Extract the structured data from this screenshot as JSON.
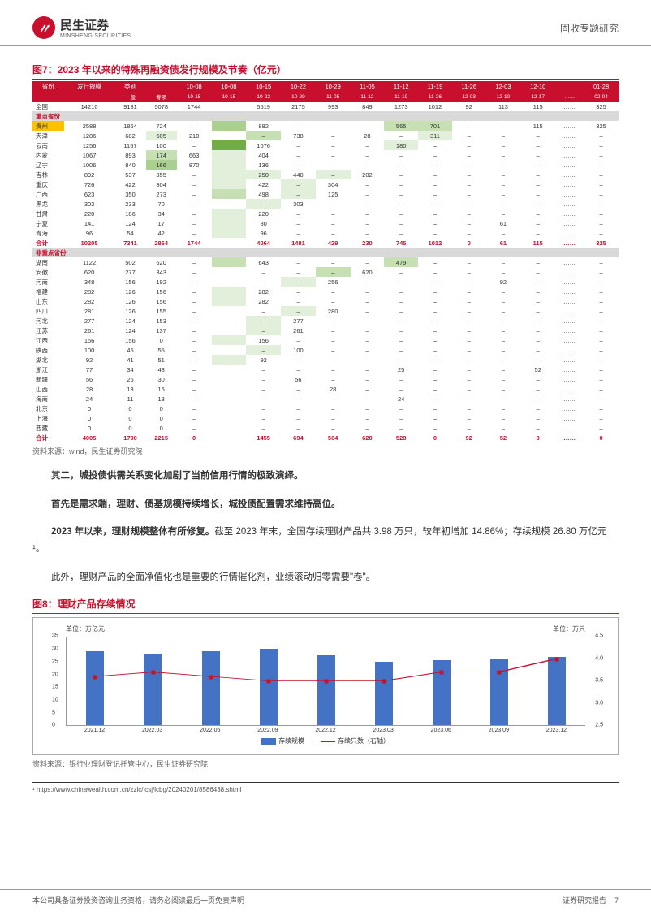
{
  "header": {
    "logo_cn": "民生证券",
    "logo_en": "MINSHENG SECURITIES",
    "right": "固收专题研究"
  },
  "fig7": {
    "title": "图7：2023 年以来的特殊再融资债发行规模及节奏（亿元）",
    "source": "资料来源：wind，民生证券研究院",
    "head1": [
      "省份",
      "发行规模",
      "类别",
      "",
      "10-08",
      "10-08",
      "10-15",
      "10-22",
      "10-29",
      "11-05",
      "11-12",
      "11-19",
      "11-26",
      "12-03",
      "12-10",
      "",
      "01-28"
    ],
    "head2": [
      "",
      "",
      "一般",
      "专项",
      "10-15",
      "10-15",
      "10-22",
      "10-29",
      "11-05",
      "11-12",
      "11-19",
      "11-26",
      "12-03",
      "12-10",
      "12-17",
      "……",
      "02-04"
    ],
    "national": [
      "全国",
      "14210",
      "9131",
      "5078",
      "1744",
      "",
      "5519",
      "2175",
      "993",
      "849",
      "1273",
      "1012",
      "92",
      "113",
      "115",
      "……",
      "325"
    ],
    "sec1": "重点省份",
    "rows1": [
      [
        "贵州",
        "2588",
        "1864",
        "724",
        "–",
        "",
        "882",
        "–",
        "–",
        "–",
        "565",
        "701",
        "–",
        "–",
        "115",
        "……",
        "325",
        "hlo",
        "",
        "",
        "",
        "",
        "hl3",
        "",
        "",
        "",
        "",
        "hl2",
        "hl2",
        "",
        "",
        "",
        ""
      ],
      [
        "天津",
        "1286",
        "682",
        "605",
        "210",
        "",
        "–",
        "738",
        "–",
        "28",
        "–",
        "311",
        "–",
        "–",
        "–",
        "……",
        "–",
        "",
        "",
        "",
        "hl1",
        "",
        "",
        "hl2",
        "",
        "",
        "",
        "",
        "hl1",
        "",
        "",
        "",
        ""
      ],
      [
        "云南",
        "1256",
        "1157",
        "100",
        "–",
        "",
        "1076",
        "–",
        "–",
        "–",
        "180",
        "–",
        "–",
        "–",
        "–",
        "……",
        "–",
        "",
        "",
        "",
        "",
        "",
        "hl4",
        "",
        "",
        "",
        "",
        "hl1",
        "",
        "",
        "",
        "",
        ""
      ],
      [
        "内蒙",
        "1067",
        "893",
        "174",
        "663",
        "",
        "404",
        "–",
        "–",
        "–",
        "–",
        "–",
        "–",
        "–",
        "–",
        "……",
        "–",
        "",
        "",
        "",
        "hl2",
        "",
        "hl1",
        "",
        "",
        "",
        "",
        "",
        "",
        "",
        "",
        "",
        ""
      ],
      [
        "辽宁",
        "1006",
        "840",
        "166",
        "870",
        "",
        "136",
        "–",
        "–",
        "–",
        "–",
        "–",
        "–",
        "–",
        "–",
        "……",
        "–",
        "",
        "",
        "",
        "hl3",
        "",
        "hl1",
        "",
        "",
        "",
        "",
        "",
        "",
        "",
        "",
        "",
        ""
      ],
      [
        "吉林",
        "892",
        "537",
        "355",
        "–",
        "",
        "250",
        "440",
        "–",
        "202",
        "–",
        "–",
        "–",
        "–",
        "–",
        "……",
        "–",
        "",
        "",
        "",
        "",
        "",
        "hl1",
        "hl1",
        "",
        "hl1",
        "",
        "",
        "",
        "",
        "",
        "",
        ""
      ],
      [
        "重庆",
        "726",
        "422",
        "304",
        "–",
        "",
        "422",
        "–",
        "304",
        "–",
        "–",
        "–",
        "–",
        "–",
        "–",
        "……",
        "–",
        "",
        "",
        "",
        "",
        "",
        "hl1",
        "",
        "hl1",
        "",
        "",
        "",
        "",
        "",
        "",
        "",
        ""
      ],
      [
        "广西",
        "623",
        "350",
        "273",
        "–",
        "",
        "498",
        "–",
        "125",
        "–",
        "–",
        "–",
        "–",
        "–",
        "–",
        "……",
        "–",
        "",
        "",
        "",
        "",
        "",
        "hl2",
        "",
        "hl1",
        "",
        "",
        "",
        "",
        "",
        "",
        "",
        ""
      ],
      [
        "黑龙",
        "303",
        "233",
        "70",
        "–",
        "",
        "–",
        "303",
        "–",
        "–",
        "–",
        "–",
        "–",
        "–",
        "–",
        "……",
        "–",
        "",
        "",
        "",
        "",
        "",
        "",
        "hl1",
        "",
        "",
        "",
        "",
        "",
        "",
        "",
        "",
        ""
      ],
      [
        "甘肃",
        "220",
        "186",
        "34",
        "–",
        "",
        "220",
        "–",
        "–",
        "–",
        "–",
        "–",
        "–",
        "–",
        "–",
        "……",
        "–",
        "",
        "",
        "",
        "",
        "",
        "hl1",
        "",
        "",
        "",
        "",
        "",
        "",
        "",
        "",
        "",
        ""
      ],
      [
        "宁夏",
        "141",
        "124",
        "17",
        "–",
        "",
        "80",
        "–",
        "–",
        "–",
        "–",
        "–",
        "–",
        "61",
        "–",
        "……",
        "–",
        "",
        "",
        "",
        "",
        "",
        "hl1",
        "",
        "",
        "",
        "",
        "",
        "",
        "",
        "",
        "",
        ""
      ],
      [
        "青海",
        "96",
        "54",
        "42",
        "–",
        "",
        "96",
        "–",
        "–",
        "–",
        "–",
        "–",
        "–",
        "–",
        "–",
        "……",
        "–",
        "",
        "",
        "",
        "",
        "",
        "hl1",
        "",
        "",
        "",
        "",
        "",
        "",
        "",
        "",
        "",
        ""
      ]
    ],
    "total1": [
      "合计",
      "10205",
      "7341",
      "2864",
      "1744",
      "",
      "4064",
      "1481",
      "429",
      "230",
      "745",
      "1012",
      "0",
      "61",
      "115",
      "……",
      "325"
    ],
    "sec2": "非重点省份",
    "rows2": [
      [
        "湖南",
        "1122",
        "502",
        "620",
        "–",
        "",
        "643",
        "–",
        "–",
        "–",
        "479",
        "–",
        "–",
        "–",
        "–",
        "……",
        "–",
        "",
        "",
        "",
        "",
        "",
        "hl2",
        "",
        "",
        "",
        "",
        "hl2",
        "",
        "",
        "",
        "",
        ""
      ],
      [
        "安徽",
        "620",
        "277",
        "343",
        "–",
        "",
        "–",
        "–",
        "–",
        "620",
        "–",
        "–",
        "–",
        "–",
        "–",
        "……",
        "–",
        "",
        "",
        "",
        "",
        "",
        "",
        "",
        "",
        "hl2",
        "",
        "",
        "",
        "",
        "",
        "",
        ""
      ],
      [
        "河南",
        "348",
        "156",
        "192",
        "–",
        "",
        "–",
        "–",
        "256",
        "–",
        "–",
        "–",
        "–",
        "92",
        "–",
        "……",
        "–",
        "",
        "",
        "",
        "",
        "",
        "",
        "",
        "hl1",
        "",
        "",
        "",
        "",
        "",
        "",
        "",
        ""
      ],
      [
        "福建",
        "282",
        "126",
        "156",
        "–",
        "",
        "282",
        "–",
        "–",
        "–",
        "–",
        "–",
        "–",
        "–",
        "–",
        "……",
        "–",
        "",
        "",
        "",
        "",
        "",
        "hl1",
        "",
        "",
        "",
        "",
        "",
        "",
        "",
        "",
        "",
        ""
      ],
      [
        "山东",
        "282",
        "126",
        "156",
        "–",
        "",
        "282",
        "–",
        "–",
        "–",
        "–",
        "–",
        "–",
        "–",
        "–",
        "……",
        "–",
        "",
        "",
        "",
        "",
        "",
        "hl1",
        "",
        "",
        "",
        "",
        "",
        "",
        "",
        "",
        "",
        ""
      ],
      [
        "四川",
        "281",
        "126",
        "155",
        "–",
        "",
        "–",
        "–",
        "280",
        "–",
        "–",
        "–",
        "–",
        "–",
        "–",
        "……",
        "–",
        "",
        "",
        "",
        "",
        "",
        "",
        "",
        "hl1",
        "",
        "",
        "",
        "",
        "",
        "",
        "",
        ""
      ],
      [
        "河北",
        "277",
        "124",
        "153",
        "–",
        "",
        "–",
        "277",
        "–",
        "–",
        "–",
        "–",
        "–",
        "–",
        "–",
        "……",
        "–",
        "",
        "",
        "",
        "",
        "",
        "",
        "hl1",
        "",
        "",
        "",
        "",
        "",
        "",
        "",
        "",
        ""
      ],
      [
        "江苏",
        "261",
        "124",
        "137",
        "–",
        "",
        "–",
        "261",
        "–",
        "–",
        "–",
        "–",
        "–",
        "–",
        "–",
        "……",
        "–",
        "",
        "",
        "",
        "",
        "",
        "",
        "hl1",
        "",
        "",
        "",
        "",
        "",
        "",
        "",
        "",
        ""
      ],
      [
        "江西",
        "156",
        "156",
        "0",
        "–",
        "",
        "156",
        "–",
        "–",
        "–",
        "–",
        "–",
        "–",
        "–",
        "–",
        "……",
        "–",
        "",
        "",
        "",
        "",
        "",
        "hl1",
        "",
        "",
        "",
        "",
        "",
        "",
        "",
        "",
        "",
        ""
      ],
      [
        "陕西",
        "100",
        "45",
        "55",
        "–",
        "",
        "–",
        "100",
        "–",
        "–",
        "–",
        "–",
        "–",
        "–",
        "–",
        "……",
        "–",
        "",
        "",
        "",
        "",
        "",
        "",
        "hl1",
        "",
        "",
        "",
        "",
        "",
        "",
        "",
        "",
        ""
      ],
      [
        "湖北",
        "92",
        "41",
        "51",
        "–",
        "",
        "92",
        "–",
        "–",
        "–",
        "–",
        "–",
        "–",
        "–",
        "–",
        "……",
        "–",
        "",
        "",
        "",
        "",
        "",
        "hl1",
        "",
        "",
        "",
        "",
        "",
        "",
        "",
        "",
        "",
        ""
      ],
      [
        "浙江",
        "77",
        "34",
        "43",
        "–",
        "",
        "–",
        "–",
        "–",
        "–",
        "25",
        "–",
        "–",
        "–",
        "52",
        "……",
        "–",
        "",
        "",
        "",
        "",
        "",
        "",
        "",
        "",
        "",
        "",
        "",
        "",
        "",
        "",
        "",
        ""
      ],
      [
        "新疆",
        "56",
        "26",
        "30",
        "–",
        "",
        "–",
        "56",
        "–",
        "–",
        "–",
        "–",
        "–",
        "–",
        "–",
        "……",
        "–",
        "",
        "",
        "",
        "",
        "",
        "",
        "",
        "",
        "",
        "",
        "",
        "",
        "",
        "",
        "",
        ""
      ],
      [
        "山西",
        "28",
        "13",
        "16",
        "–",
        "",
        "–",
        "–",
        "28",
        "–",
        "–",
        "–",
        "–",
        "–",
        "–",
        "……",
        "–",
        "",
        "",
        "",
        "",
        "",
        "",
        "",
        "",
        "",
        "",
        "",
        "",
        "",
        "",
        "",
        ""
      ],
      [
        "海南",
        "24",
        "11",
        "13",
        "–",
        "",
        "–",
        "–",
        "–",
        "–",
        "24",
        "–",
        "–",
        "–",
        "–",
        "……",
        "–",
        "",
        "",
        "",
        "",
        "",
        "",
        "",
        "",
        "",
        "",
        "",
        "",
        "",
        "",
        "",
        ""
      ],
      [
        "北京",
        "0",
        "0",
        "0",
        "–",
        "",
        "–",
        "–",
        "–",
        "–",
        "–",
        "–",
        "–",
        "–",
        "–",
        "……",
        "–",
        "",
        "",
        "",
        "",
        "",
        "",
        "",
        "",
        "",
        "",
        "",
        "",
        "",
        "",
        "",
        ""
      ],
      [
        "上海",
        "0",
        "0",
        "0",
        "–",
        "",
        "–",
        "–",
        "–",
        "–",
        "–",
        "–",
        "–",
        "–",
        "–",
        "……",
        "–",
        "",
        "",
        "",
        "",
        "",
        "",
        "",
        "",
        "",
        "",
        "",
        "",
        "",
        "",
        "",
        ""
      ],
      [
        "西藏",
        "0",
        "0",
        "0",
        "–",
        "",
        "–",
        "–",
        "–",
        "–",
        "–",
        "–",
        "–",
        "–",
        "–",
        "……",
        "–",
        "",
        "",
        "",
        "",
        "",
        "",
        "",
        "",
        "",
        "",
        "",
        "",
        "",
        "",
        "",
        ""
      ]
    ],
    "total2": [
      "合计",
      "4005",
      "1790",
      "2215",
      "0",
      "",
      "1455",
      "694",
      "564",
      "620",
      "528",
      "0",
      "92",
      "52",
      "0",
      "……",
      "0"
    ]
  },
  "paras": [
    {
      "t": "其二，城投债供需关系变化加剧了当前信用行情的极致演绎。",
      "b": true
    },
    {
      "t": "首先是需求端，理财、债基规模持续增长，城投债配置需求维持高位。",
      "b": true
    },
    {
      "t": "2023 年以来，理财规模整体有所修复。截至 2023 年末，全国存续理财产品共 3.98 万只，较年初增加 14.86%；存续规模 26.80 万亿元¹。",
      "b": false,
      "boldPrefix": "2023 年以来，理财规模整体有所修复。"
    },
    {
      "t": "此外，理财产品的全面净值化也是重要的行情催化剂，业绩滚动归零需要\"卷\"。",
      "b": false
    }
  ],
  "fig8": {
    "title": "图8：理财产品存续情况",
    "source": "资料来源：银行业理财登记托管中心，民生证券研究院",
    "unit_l": "单位：万亿元",
    "unit_r": "单位：万只",
    "yl": [
      0,
      5,
      10,
      15,
      20,
      25,
      30,
      35
    ],
    "yr": [
      2.5,
      3.0,
      3.5,
      4.0,
      4.5
    ],
    "x": [
      "2021.12",
      "2022.03",
      "2022.06",
      "2022.09",
      "2022.12",
      "2023.03",
      "2023.06",
      "2023.09",
      "2023.12"
    ],
    "bars": [
      29,
      28,
      29,
      30,
      27.5,
      25,
      25.5,
      26,
      27
    ],
    "line": [
      3.6,
      3.7,
      3.6,
      3.5,
      3.5,
      3.5,
      3.7,
      3.7,
      4.0
    ],
    "bar_color": "#4472c4",
    "line_color": "#c8102e",
    "legend": [
      "存续规模",
      "存续只数（右轴）"
    ]
  },
  "footnote": "¹ https://www.chinawealth.com.cn/zzlc/lcsj/lcbg/20240201/8586438.shtml",
  "footer": {
    "left": "本公司具备证券投资咨询业务资格，请务必阅读最后一页免责声明",
    "right": "证券研究报告",
    "page": "7"
  }
}
